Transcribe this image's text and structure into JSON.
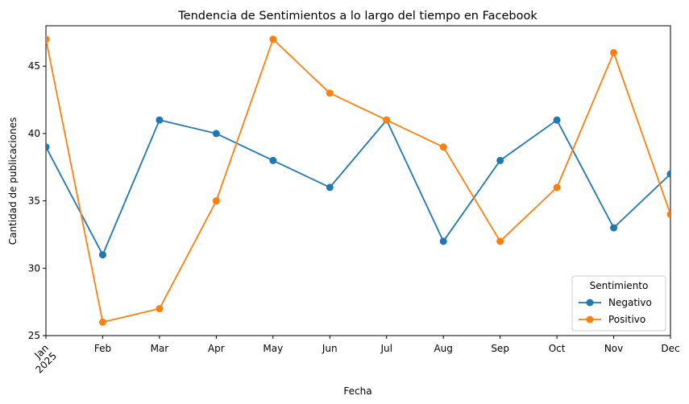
{
  "chart_data": {
    "type": "line",
    "title": "Tendencia de Sentimientos a lo largo del tiempo en Facebook",
    "xlabel": "Fecha",
    "ylabel": "Cantidad de publicaciones",
    "categories": [
      "Jan",
      "Feb",
      "Mar",
      "Apr",
      "May",
      "Jun",
      "Jul",
      "Aug",
      "Sep",
      "Oct",
      "Nov",
      "Dec"
    ],
    "year_label": "2025",
    "ylim": [
      25,
      48
    ],
    "yticks": [
      25,
      30,
      35,
      40,
      45
    ],
    "legend_title": "Sentimiento",
    "legend_position": "lower-right",
    "grid": false,
    "series": [
      {
        "name": "Negativo",
        "color": "#1f77b4",
        "values": [
          39,
          31,
          41,
          40,
          38,
          36,
          41,
          32,
          38,
          41,
          33,
          37
        ]
      },
      {
        "name": "Positivo",
        "color": "#ff7f0e",
        "values": [
          47,
          26,
          27,
          35,
          47,
          43,
          41,
          39,
          32,
          36,
          46,
          34
        ]
      }
    ]
  }
}
